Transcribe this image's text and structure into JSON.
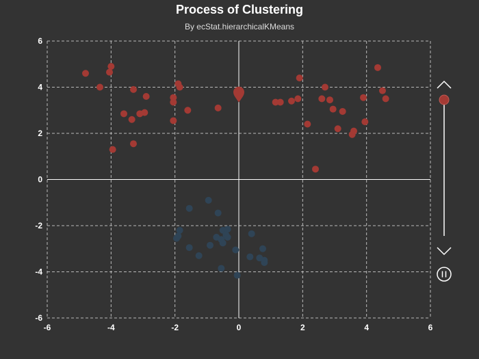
{
  "chart": {
    "title": "Process of Clustering",
    "subtitle": "By ecStat.hierarchicalKMeans"
  },
  "colors": {
    "background": "#333333",
    "axis": "#ffffff",
    "grid": "#bbbbbb",
    "cluster_1": "#a33a34",
    "cluster_2": "#2f4456",
    "control": "#ffffff"
  },
  "controls": {
    "up_icon": "chevron-up-icon",
    "down_icon": "chevron-down-icon",
    "pause_icon": "pause-icon",
    "timeline_progress": 0.0
  },
  "chart_data": {
    "type": "scatter",
    "title": "Process of Clustering",
    "subtitle": "By ecStat.hierarchicalKMeans",
    "xlim": [
      -6,
      6
    ],
    "ylim": [
      -6,
      6
    ],
    "x_ticks": [
      "-6",
      "-4",
      "-2",
      "0",
      "2",
      "4",
      "6"
    ],
    "y_ticks": [
      "6",
      "4",
      "2",
      "0",
      "-2",
      "-4",
      "-6"
    ],
    "grid": true,
    "series": [
      {
        "color": "#a33a34",
        "points": [
          [
            -4.8,
            4.6
          ],
          [
            -4.0,
            4.9
          ],
          [
            -4.05,
            4.65
          ],
          [
            -4.35,
            4.0
          ],
          [
            -3.3,
            3.9
          ],
          [
            -3.6,
            2.85
          ],
          [
            -3.35,
            2.6
          ],
          [
            -3.1,
            2.85
          ],
          [
            -2.95,
            2.9
          ],
          [
            -2.9,
            3.6
          ],
          [
            -3.3,
            1.55
          ],
          [
            -3.95,
            1.3
          ],
          [
            -2.05,
            3.55
          ],
          [
            -2.05,
            3.35
          ],
          [
            -1.9,
            4.15
          ],
          [
            -1.85,
            4.0
          ],
          [
            -2.05,
            2.55
          ],
          [
            -1.6,
            3.0
          ],
          [
            -0.65,
            3.1
          ],
          [
            1.15,
            3.35
          ],
          [
            1.3,
            3.35
          ],
          [
            1.65,
            3.4
          ],
          [
            1.85,
            3.5
          ],
          [
            1.9,
            4.4
          ],
          [
            2.15,
            2.4
          ],
          [
            2.4,
            0.45
          ],
          [
            2.6,
            3.5
          ],
          [
            2.7,
            4.0
          ],
          [
            2.85,
            3.45
          ],
          [
            2.95,
            3.05
          ],
          [
            3.1,
            2.2
          ],
          [
            3.25,
            2.95
          ],
          [
            3.55,
            1.95
          ],
          [
            3.6,
            2.1
          ],
          [
            3.9,
            3.55
          ],
          [
            3.95,
            2.5
          ],
          [
            4.35,
            4.85
          ],
          [
            4.5,
            3.85
          ],
          [
            4.6,
            3.5
          ]
        ]
      },
      {
        "color": "#2f4456",
        "points": [
          [
            -1.55,
            -1.25
          ],
          [
            -0.95,
            -0.9
          ],
          [
            -0.65,
            -1.45
          ],
          [
            -1.85,
            -2.2
          ],
          [
            -1.9,
            -2.45
          ],
          [
            -1.95,
            -2.55
          ],
          [
            -0.7,
            -2.5
          ],
          [
            -0.5,
            -2.2
          ],
          [
            -0.35,
            -2.15
          ],
          [
            -0.4,
            -2.4
          ],
          [
            -0.55,
            -2.6
          ],
          [
            -0.5,
            -2.75
          ],
          [
            -0.35,
            -2.5
          ],
          [
            -0.9,
            -2.85
          ],
          [
            -1.55,
            -2.95
          ],
          [
            -1.25,
            -3.3
          ],
          [
            0.4,
            -2.35
          ],
          [
            -0.1,
            -3.05
          ],
          [
            0.35,
            -3.35
          ],
          [
            0.65,
            -3.4
          ],
          [
            0.75,
            -3.0
          ],
          [
            0.8,
            -3.5
          ],
          [
            0.8,
            -3.6
          ],
          [
            -0.55,
            -3.85
          ],
          [
            -0.05,
            -4.15
          ]
        ]
      }
    ],
    "centers": [
      {
        "x": 0.0,
        "y": 3.7,
        "color": "#a33a34"
      }
    ]
  }
}
